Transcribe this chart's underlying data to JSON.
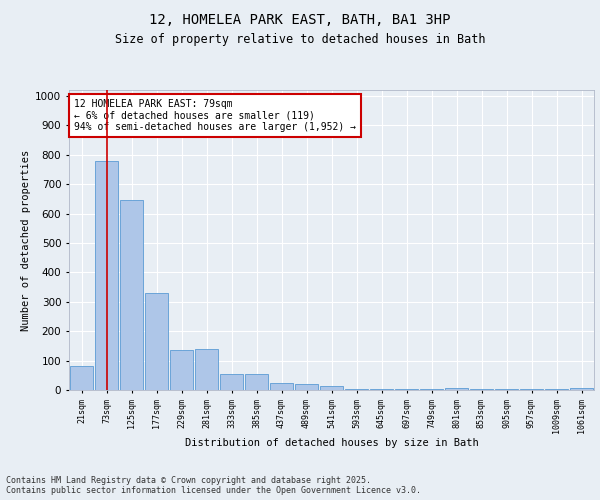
{
  "title_line1": "12, HOMELEA PARK EAST, BATH, BA1 3HP",
  "title_line2": "Size of property relative to detached houses in Bath",
  "xlabel": "Distribution of detached houses by size in Bath",
  "ylabel": "Number of detached properties",
  "bar_labels": [
    "21sqm",
    "73sqm",
    "125sqm",
    "177sqm",
    "229sqm",
    "281sqm",
    "333sqm",
    "385sqm",
    "437sqm",
    "489sqm",
    "541sqm",
    "593sqm",
    "645sqm",
    "697sqm",
    "749sqm",
    "801sqm",
    "853sqm",
    "905sqm",
    "957sqm",
    "1009sqm",
    "1061sqm"
  ],
  "bar_values": [
    83,
    780,
    645,
    330,
    135,
    140,
    55,
    55,
    25,
    20,
    15,
    3,
    3,
    3,
    3,
    7,
    2,
    2,
    2,
    2,
    8
  ],
  "bar_color": "#aec6e8",
  "bar_edge_color": "#5b9bd5",
  "vline_x": 1,
  "vline_color": "#cc0000",
  "annotation_text": "12 HOMELEA PARK EAST: 79sqm\n← 6% of detached houses are smaller (119)\n94% of semi-detached houses are larger (1,952) →",
  "annotation_box_color": "#cc0000",
  "ylim": [
    0,
    1020
  ],
  "yticks": [
    0,
    100,
    200,
    300,
    400,
    500,
    600,
    700,
    800,
    900,
    1000
  ],
  "footer_text": "Contains HM Land Registry data © Crown copyright and database right 2025.\nContains public sector information licensed under the Open Government Licence v3.0.",
  "bg_color": "#e8eef4",
  "plot_bg_color": "#e8eef4"
}
